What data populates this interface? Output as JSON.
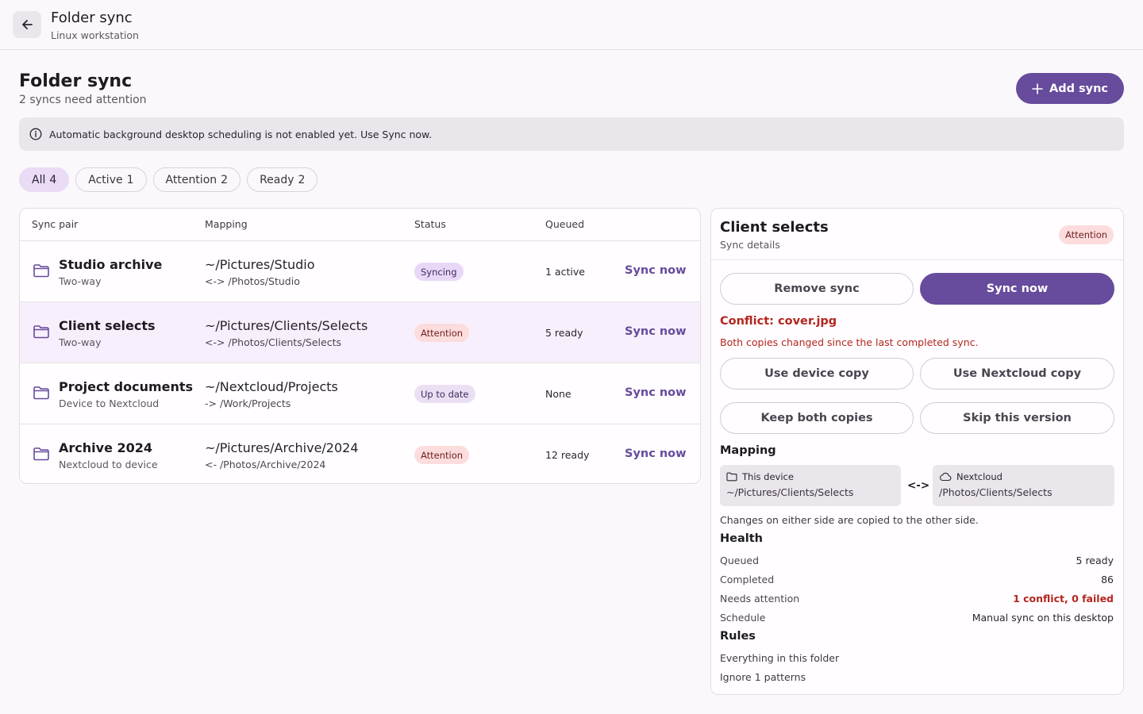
{
  "topbar": {
    "title": "Folder sync",
    "subtitle": "Linux workstation"
  },
  "page": {
    "title": "Folder sync",
    "subtitle": "2 syncs need attention",
    "add_label": "Add sync",
    "banner": "Automatic background desktop scheduling is not enabled yet. Use Sync now."
  },
  "filters": [
    {
      "label": "All",
      "count": "4",
      "selected": true
    },
    {
      "label": "Active",
      "count": "1",
      "selected": false
    },
    {
      "label": "Attention",
      "count": "2",
      "selected": false
    },
    {
      "label": "Ready",
      "count": "2",
      "selected": false
    }
  ],
  "table": {
    "headers": {
      "pair": "Sync pair",
      "mapping": "Mapping",
      "status": "Status",
      "queued": "Queued"
    },
    "rows": [
      {
        "name": "Studio archive",
        "direction": "Two-way",
        "path": "~/Pictures/Studio",
        "remote": "<-> /Photos/Studio",
        "status": "Syncing",
        "queued": "1 active",
        "action": "Sync now"
      },
      {
        "name": "Client selects",
        "direction": "Two-way",
        "path": "~/Pictures/Clients/Selects",
        "remote": "<-> /Photos/Clients/Selects",
        "status": "Attention",
        "queued": "5 ready",
        "action": "Sync now"
      },
      {
        "name": "Project documents",
        "direction": "Device to Nextcloud",
        "path": "~/Nextcloud/Projects",
        "remote": "-> /Work/Projects",
        "status": "Up to date",
        "queued": "None",
        "action": "Sync now"
      },
      {
        "name": "Archive 2024",
        "direction": "Nextcloud to device",
        "path": "~/Pictures/Archive/2024",
        "remote": "<- /Photos/Archive/2024",
        "status": "Attention",
        "queued": "12 ready",
        "action": "Sync now"
      }
    ]
  },
  "detail": {
    "title": "Client selects",
    "subtitle": "Sync details",
    "badge": "Attention",
    "remove_label": "Remove sync",
    "sync_label": "Sync now",
    "conflict_title": "Conflict: cover.jpg",
    "conflict_text": "Both copies changed since the last completed sync.",
    "resolve": {
      "device": "Use device copy",
      "nextcloud": "Use Nextcloud copy",
      "keep_both": "Keep both copies",
      "skip": "Skip this version"
    },
    "mapping_heading": "Mapping",
    "local_label": "This device",
    "local_path": "~/Pictures/Clients/Selects",
    "arrows": "<->",
    "remote_label": "Nextcloud",
    "remote_path": "/Photos/Clients/Selects",
    "mapping_note": "Changes on either side are copied to the other side.",
    "health_heading": "Health",
    "health": {
      "queued_k": "Queued",
      "queued_v": "5 ready",
      "completed_k": "Completed",
      "completed_v": "86",
      "attention_k": "Needs attention",
      "attention_v": "1 conflict, 0 failed",
      "schedule_k": "Schedule",
      "schedule_v": "Manual sync on this desktop"
    },
    "rules_heading": "Rules",
    "rules": [
      "Everything in this folder",
      "Ignore 1 patterns"
    ]
  },
  "colors": {
    "accent": "#674b9c",
    "error": "#b3261e",
    "attention_bg": "#fcdcdc"
  }
}
